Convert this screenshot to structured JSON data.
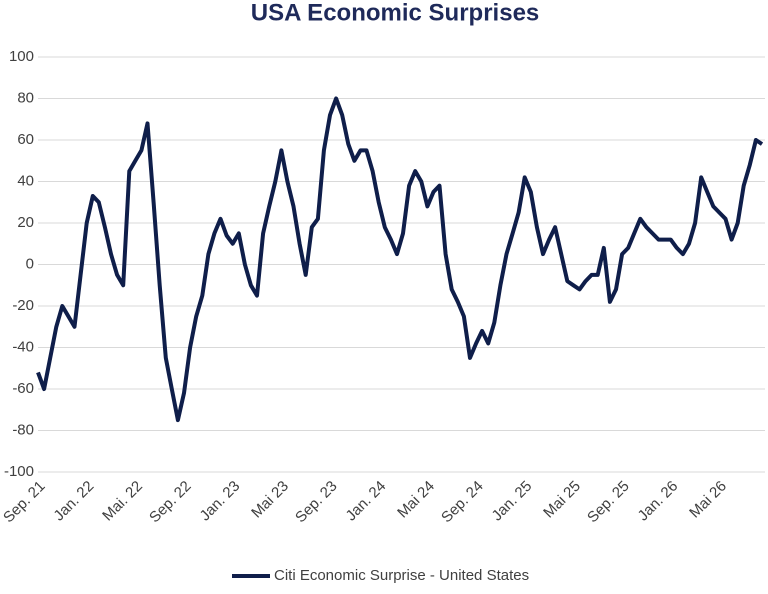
{
  "chart_data": {
    "type": "line",
    "title": "USA Economic Surprises",
    "categories": [
      "Sep. 21",
      null,
      null,
      null,
      null,
      null,
      null,
      null,
      "Jan. 22",
      null,
      null,
      null,
      null,
      null,
      null,
      null,
      "Mai. 22",
      null,
      null,
      null,
      null,
      null,
      null,
      null,
      "Sep. 22",
      null,
      null,
      null,
      null,
      null,
      null,
      null,
      "Jan. 23",
      null,
      null,
      null,
      null,
      null,
      null,
      null,
      "Mai 23",
      null,
      null,
      null,
      null,
      null,
      null,
      null,
      "Sep. 23",
      null,
      null,
      null,
      null,
      null,
      null,
      null,
      "Jan. 24",
      null,
      null,
      null,
      null,
      null,
      null,
      null,
      "Mai 24",
      null,
      null,
      null,
      null,
      null,
      null,
      null,
      "Sep. 24",
      null,
      null,
      null,
      null,
      null,
      null,
      null,
      "Jan. 25",
      null,
      null,
      null,
      null,
      null,
      null,
      null,
      "Mai 25",
      null,
      null,
      null,
      null,
      null,
      null,
      null,
      "Sep. 25",
      null,
      null,
      null,
      null,
      null,
      null,
      null,
      "Jan. 26",
      null,
      null,
      null,
      null,
      null,
      null,
      null,
      "Mai 26",
      null,
      null,
      null,
      null,
      null,
      null,
      null
    ],
    "series": [
      {
        "name": "Citi Economic Surprise - United States",
        "color": "#0f1e4a",
        "values": [
          -52,
          -60,
          -45,
          -30,
          -20,
          -25,
          -30,
          -5,
          20,
          33,
          30,
          18,
          5,
          -5,
          -10,
          45,
          50,
          55,
          68,
          30,
          -10,
          -45,
          -60,
          -75,
          -62,
          -40,
          -25,
          -15,
          5,
          15,
          22,
          14,
          10,
          15,
          0,
          -10,
          -15,
          15,
          28,
          40,
          55,
          40,
          28,
          10,
          -5,
          18,
          22,
          55,
          72,
          80,
          72,
          58,
          50,
          55,
          55,
          45,
          30,
          18,
          12,
          5,
          15,
          38,
          45,
          40,
          28,
          35,
          38,
          5,
          -12,
          -18,
          -25,
          -45,
          -38,
          -32,
          -38,
          -28,
          -10,
          5,
          15,
          25,
          42,
          35,
          18,
          5,
          12,
          18,
          5,
          -8,
          -10,
          -12,
          -8,
          -5,
          -5,
          8,
          -18,
          -12,
          5,
          8,
          15,
          22,
          18,
          15,
          12,
          12,
          12,
          8,
          5,
          10,
          20,
          42,
          35,
          28,
          25,
          22,
          12,
          20,
          38,
          48,
          60,
          58
        ]
      }
    ],
    "ylim": [
      -100,
      100
    ],
    "yticks": [
      -100,
      -80,
      -60,
      -40,
      -20,
      0,
      20,
      40,
      60,
      80,
      100
    ],
    "grid": true,
    "legend": "bottom"
  }
}
